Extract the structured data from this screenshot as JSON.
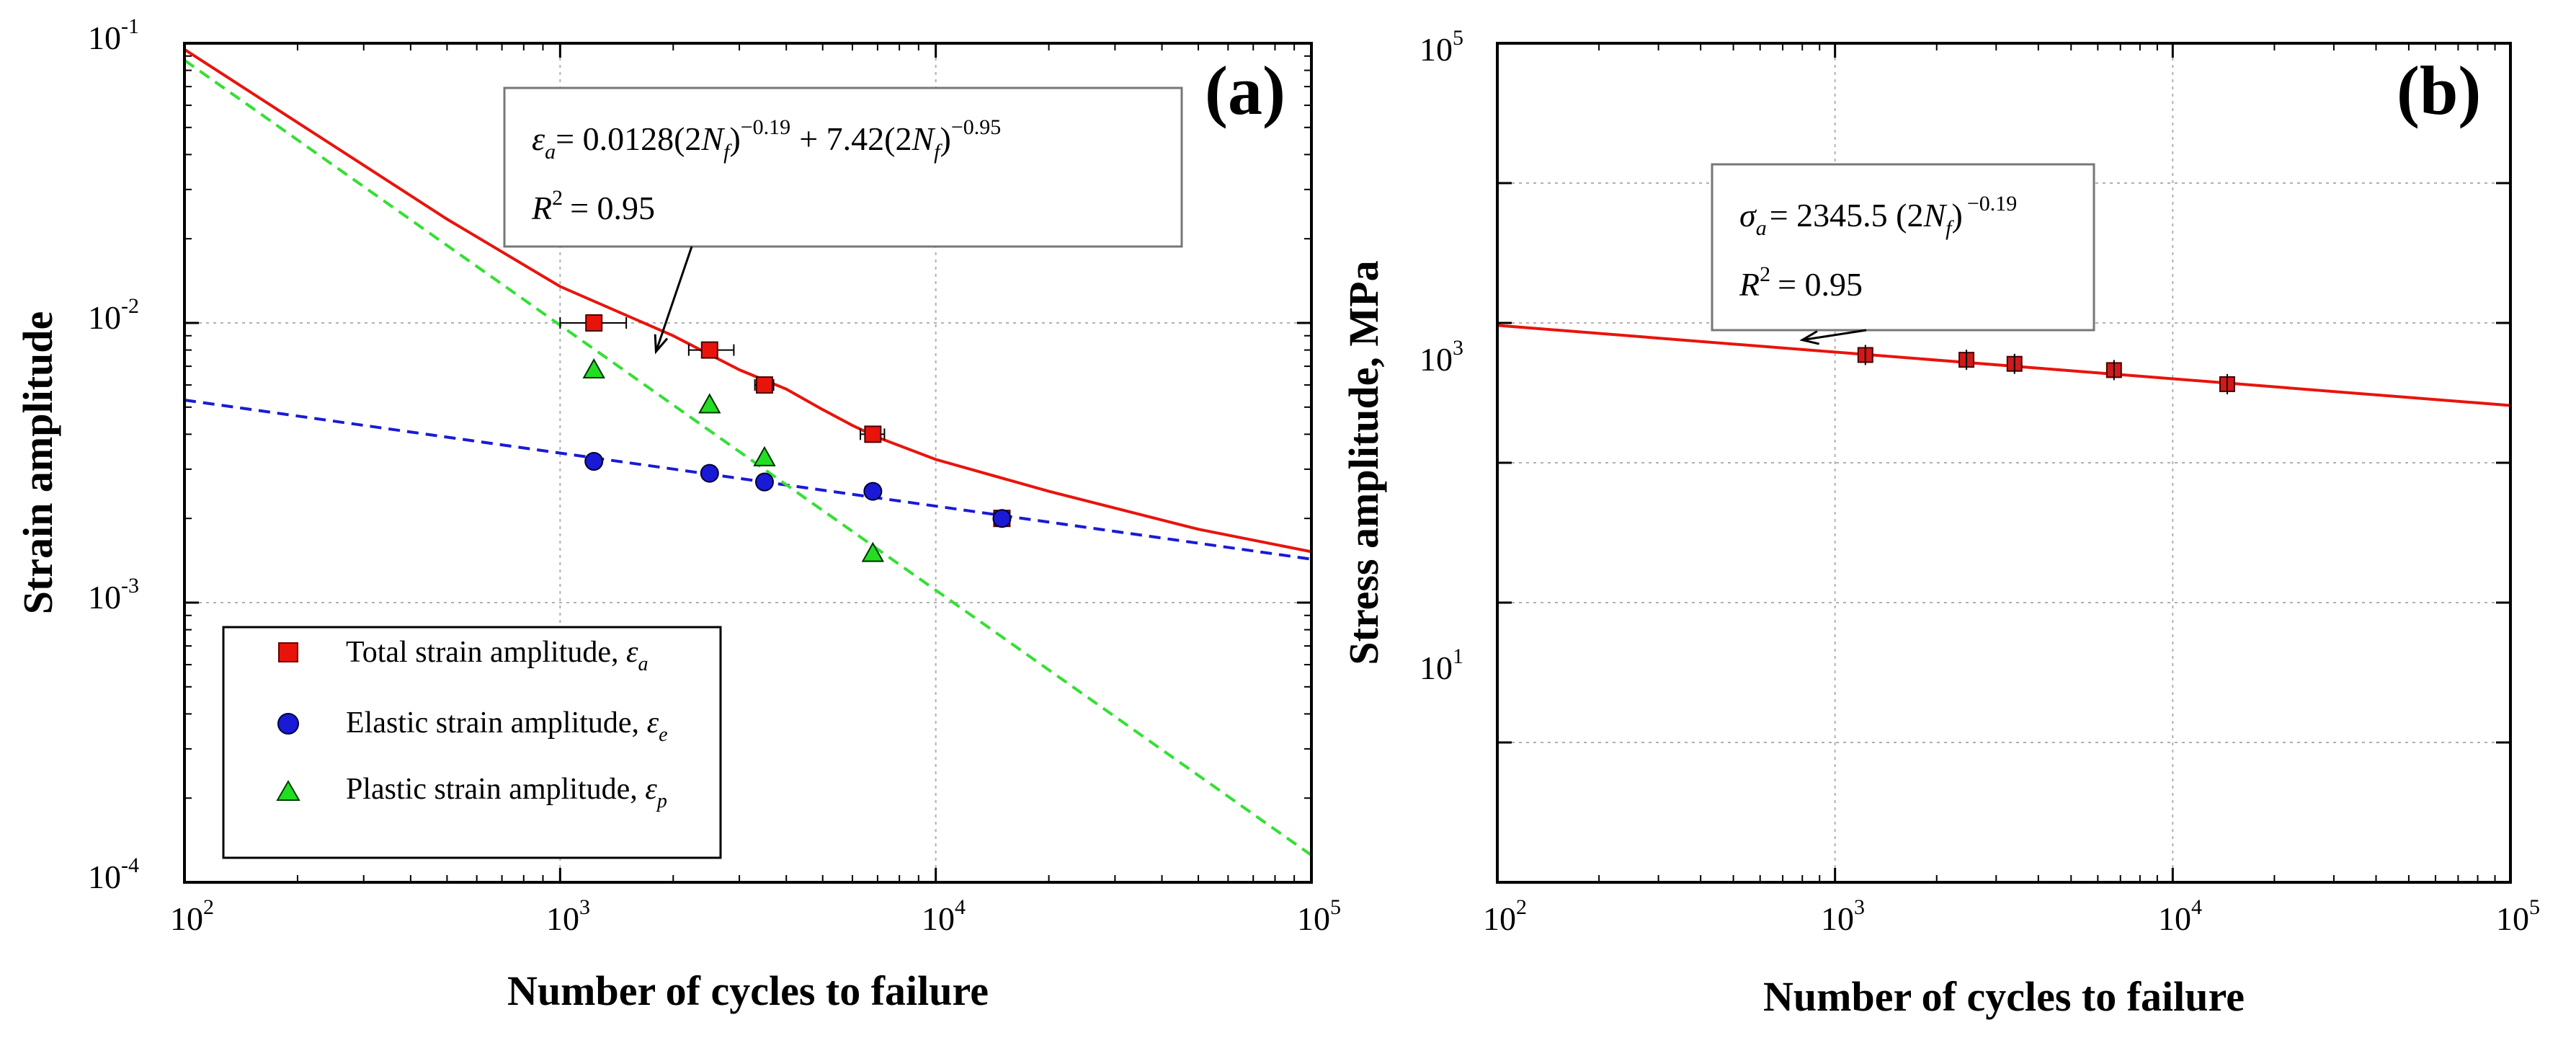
{
  "figure": {
    "panels": [
      "(a)",
      "(b)"
    ]
  },
  "chart_data": [
    {
      "type": "scatter",
      "panel_label": "(a)",
      "xlabel": "Number of cycles to failure",
      "ylabel": "Strain amplitude",
      "xscale": "log",
      "yscale": "log",
      "xlim": [
        100,
        100000
      ],
      "ylim": [
        0.0001,
        0.1
      ],
      "grid": true,
      "x_ticks": [
        {
          "base": "10",
          "exp": "2"
        },
        {
          "base": "10",
          "exp": "3"
        },
        {
          "base": "10",
          "exp": "4"
        },
        {
          "base": "10",
          "exp": "5"
        }
      ],
      "y_ticks": [
        {
          "base": "10",
          "exp": "-4"
        },
        {
          "base": "10",
          "exp": "-3"
        },
        {
          "base": "10",
          "exp": "-2"
        },
        {
          "base": "10",
          "exp": "-1"
        }
      ],
      "series": [
        {
          "name": "Total strain amplitude, ε_a",
          "legend_label": "Total strain amplitude, ",
          "legend_symbol": "ε",
          "legend_sub": "a",
          "marker": "square",
          "color": "#e8140c",
          "x": [
            1230,
            2500,
            3500,
            6800,
            15000
          ],
          "y": [
            0.01,
            0.008,
            0.006,
            0.004,
            0.002
          ],
          "xerr": [
            [
              1000,
              1500
            ],
            [
              2200,
              2900
            ],
            [
              3300,
              3700
            ],
            [
              6300,
              7300
            ],
            [
              14500,
              15500
            ]
          ]
        },
        {
          "name": "Elastic strain amplitude, ε_e",
          "legend_label": "Elastic strain amplitude, ",
          "legend_symbol": "ε",
          "legend_sub": "e",
          "marker": "circle",
          "color": "#1a1ad6",
          "x": [
            1230,
            2500,
            3500,
            6800,
            15000
          ],
          "y": [
            0.0032,
            0.0029,
            0.0027,
            0.0025,
            0.002
          ]
        },
        {
          "name": "Plastic strain amplitude, ε_p",
          "legend_label": "Plastic strain amplitude, ",
          "legend_symbol": "ε",
          "legend_sub": "p",
          "marker": "triangle",
          "color": "#22dd22",
          "x": [
            1230,
            2500,
            3500,
            6800
          ],
          "y": [
            0.0068,
            0.0051,
            0.0033,
            0.0015
          ]
        }
      ],
      "fit_lines": [
        {
          "name": "total fit",
          "style": "solid",
          "color": "#e8140c",
          "x": [
            100,
            500,
            1000,
            2000,
            3000,
            4000,
            5000,
            6000,
            7000,
            10000,
            20000,
            50000,
            100000
          ],
          "y": [
            0.095,
            0.0235,
            0.0135,
            0.009,
            0.0068,
            0.0058,
            0.0049,
            0.0043,
            0.0039,
            0.00325,
            0.0025,
            0.00183,
            0.00152
          ]
        },
        {
          "name": "elastic fit",
          "style": "dashed",
          "color": "#1a1ad6",
          "x": [
            100,
            100000
          ],
          "y": [
            0.0053,
            0.00143
          ]
        },
        {
          "name": "plastic fit",
          "style": "dashed",
          "color": "#33e033",
          "x": [
            100,
            100000
          ],
          "y": [
            0.087,
            0.000125
          ]
        }
      ],
      "annotation": {
        "eq_prefix": "= 0.0128(",
        "eq_mid": ")",
        "exp1": "−0.19",
        "eq_plus": "+ 7.42(",
        "exp2": "−0.95",
        "r2_text": "= 0.95",
        "arrow_to": [
          1800,
          0.0079
        ]
      },
      "legend_position": "bottom-left"
    },
    {
      "type": "scatter",
      "panel_label": "(b)",
      "xlabel": "Number of cycles to failure",
      "ylabel": "Stress amplitude, MPa",
      "xscale": "log",
      "yscale": "log",
      "xlim": [
        100,
        100000
      ],
      "ylim": [
        0.1,
        100000
      ],
      "grid": true,
      "x_ticks": [
        {
          "base": "10",
          "exp": "2"
        },
        {
          "base": "10",
          "exp": "3"
        },
        {
          "base": "10",
          "exp": "4"
        },
        {
          "base": "10",
          "exp": "5"
        }
      ],
      "y_ticks": [
        {
          "base": "10",
          "exp": "1"
        },
        {
          "base": "10",
          "exp": "3"
        },
        {
          "base": "10",
          "exp": "5"
        }
      ],
      "series": [
        {
          "name": "Stress amplitude",
          "marker": "square",
          "color": "#d01a1a",
          "x": [
            1230,
            2450,
            3400,
            6700,
            14500
          ],
          "y": [
            590,
            545,
            510,
            460,
            365
          ]
        }
      ],
      "fit_lines": [
        {
          "name": "stress fit",
          "style": "solid",
          "color": "#e8140c",
          "x": [
            100,
            100000
          ],
          "y": [
            960,
            257
          ]
        }
      ],
      "annotation": {
        "eq_text": "= 2345.5 (2",
        "exp": "−0.19",
        "r2_text": "= 0.95",
        "arrow_to": [
          800,
          755
        ]
      }
    }
  ]
}
